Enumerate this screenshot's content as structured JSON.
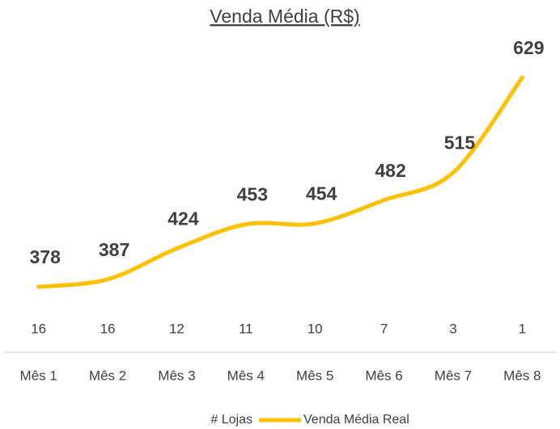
{
  "chart_data": {
    "type": "line",
    "title": "Venda Média (R$)",
    "categories": [
      "Mês 1",
      "Mês 2",
      "Mês 3",
      "Mês 4",
      "Mês 5",
      "Mês 6",
      "Mês 7",
      "Mês 8"
    ],
    "series": [
      {
        "name": "# Lojas",
        "values": [
          16,
          16,
          12,
          11,
          10,
          7,
          3,
          1
        ]
      },
      {
        "name": "Venda Média Real",
        "color": "#ffc000",
        "values": [
          378,
          387,
          424,
          453,
          454,
          482,
          515,
          629
        ]
      }
    ],
    "smooth": true
  }
}
